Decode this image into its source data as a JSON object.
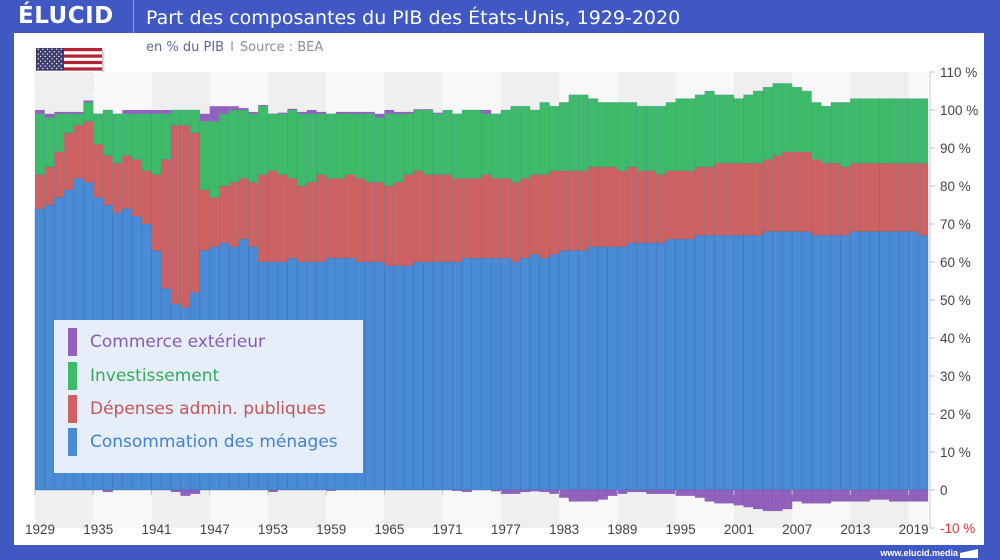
{
  "header": {
    "logo": "ÉLUCID",
    "title": "Part des composantes du PIB des États-Unis, 1929-2020"
  },
  "subtitle": {
    "unit": "en % du PIB",
    "separator": "I",
    "source": "Source : BEA"
  },
  "flag": {
    "icon": "us-flag-icon"
  },
  "footer": {
    "url": "www.elucid.media"
  },
  "colors": {
    "header_bg": "#3f58c4",
    "consumption": "#4a8bd6",
    "government": "#cd6262",
    "investment": "#3dbb68",
    "trade": "#9261be",
    "negative_label": "#e53030"
  },
  "chart_data": {
    "type": "bar",
    "stacked": true,
    "title": "Part des composantes du PIB des États-Unis, 1929-2020",
    "subtitle": "en % du PIB | Source : BEA",
    "xlabel": "",
    "ylabel": "",
    "ylim": [
      -10,
      110
    ],
    "x_start": 1929,
    "x_end": 2020,
    "x_ticks": [
      "1929",
      "1935",
      "1941",
      "1947",
      "1953",
      "1959",
      "1965",
      "1971",
      "1977",
      "1983",
      "1989",
      "1995",
      "2001",
      "2007",
      "2013",
      "2019"
    ],
    "y_ticks": [
      "110 %",
      "100 %",
      "90 %",
      "80 %",
      "70 %",
      "60 %",
      "50 %",
      "40 %",
      "30 %",
      "20 %",
      "10 %",
      "0",
      "-10 %"
    ],
    "y_tick_values": [
      110,
      100,
      90,
      80,
      70,
      60,
      50,
      40,
      30,
      20,
      10,
      0,
      -10
    ],
    "legend_position": "bottom-left",
    "legend": [
      {
        "key": "trade",
        "label": "Commerce extérieur"
      },
      {
        "key": "investment",
        "label": "Investissement"
      },
      {
        "key": "government",
        "label": "Dépenses admin. publiques"
      },
      {
        "key": "consumption",
        "label": "Consommation des ménages"
      }
    ],
    "series": [
      {
        "name": "Consommation des ménages",
        "key": "consumption",
        "values": [
          74,
          75,
          77,
          79,
          82,
          81,
          77,
          75,
          73,
          74,
          72,
          70,
          63,
          53,
          49,
          48,
          52,
          63,
          64,
          65,
          64,
          66,
          64,
          60,
          60,
          60,
          61,
          60,
          60,
          60,
          61,
          61,
          61,
          60,
          60,
          60,
          59,
          59,
          59,
          60,
          60,
          60,
          60,
          60,
          61,
          61,
          61,
          61,
          61,
          60,
          61,
          62,
          61,
          62,
          63,
          63,
          63,
          64,
          64,
          64,
          64,
          65,
          65,
          65,
          65,
          66,
          66,
          66,
          67,
          67,
          67,
          67,
          67,
          67,
          67,
          68,
          68,
          68,
          68,
          68,
          67,
          67,
          67,
          67,
          68,
          68,
          68,
          68,
          68,
          68,
          68,
          67
        ]
      },
      {
        "name": "Dépenses admin. publiques",
        "key": "government",
        "values": [
          9,
          10,
          12,
          15,
          14,
          16,
          14,
          13,
          13,
          14,
          15,
          14,
          20,
          34,
          47,
          48,
          42,
          16,
          13,
          15,
          17,
          16,
          17,
          23,
          24,
          23,
          21,
          20,
          21,
          23,
          21,
          21,
          22,
          22,
          21,
          21,
          21,
          22,
          24,
          24,
          23,
          23,
          23,
          22,
          21,
          21,
          22,
          21,
          21,
          21,
          21,
          21,
          22,
          22,
          21,
          21,
          21,
          21,
          21,
          21,
          20,
          20,
          19,
          19,
          18,
          18,
          18,
          18,
          18,
          18,
          19,
          19,
          19,
          19,
          19,
          19,
          20,
          21,
          21,
          21,
          20,
          19,
          19,
          18,
          18,
          18,
          18,
          18,
          18,
          18,
          18,
          19
        ]
      },
      {
        "name": "Investissement",
        "key": "investment",
        "values": [
          16,
          13,
          10,
          5,
          3,
          5,
          8,
          12,
          13,
          11,
          12,
          15,
          16,
          12,
          4,
          4,
          6,
          18,
          20,
          19,
          19,
          18,
          18,
          18,
          15,
          16,
          18,
          19,
          18,
          16,
          17,
          17,
          16,
          17,
          18,
          17,
          19,
          18,
          16,
          16,
          17,
          16,
          17,
          17,
          18,
          18,
          16,
          17,
          18,
          20,
          19,
          17,
          19,
          17,
          18,
          20,
          20,
          18,
          17,
          17,
          18,
          17,
          17,
          17,
          18,
          18,
          19,
          19,
          19,
          20,
          18,
          18,
          17,
          18,
          19,
          19,
          19,
          18,
          17,
          16,
          15,
          15,
          16,
          17,
          17,
          17,
          17,
          17,
          17,
          17,
          17,
          17
        ]
      },
      {
        "name": "Commerce extérieur",
        "key": "trade",
        "values": [
          1,
          1,
          0.5,
          0.5,
          0.5,
          0.5,
          0,
          -0.5,
          0,
          1,
          1,
          1,
          1,
          1,
          -0.5,
          -1.5,
          -1,
          2,
          4,
          2,
          1,
          0.5,
          0.5,
          0.3,
          -0.5,
          0.3,
          0.3,
          0.5,
          1,
          0.5,
          -0.2,
          0.5,
          0.5,
          0.5,
          0.5,
          1,
          1,
          0.5,
          0.5,
          0.2,
          0.2,
          0.3,
          0,
          -0.2,
          -0.5,
          0,
          1,
          -0.3,
          -1,
          -1,
          -0.5,
          -0.3,
          -0.5,
          -1,
          -2,
          -3,
          -3,
          -3,
          -2.5,
          -1.5,
          -1,
          -0.5,
          -0.5,
          -1,
          -1,
          -1,
          -1.5,
          -1.5,
          -2,
          -3,
          -3.5,
          -3.5,
          -4,
          -4.5,
          -5,
          -5.5,
          -5.5,
          -5,
          -3,
          -3.5,
          -3.5,
          -3.5,
          -3,
          -3,
          -3,
          -3,
          -2.5,
          -2.5,
          -3,
          -3,
          -3,
          -3
        ]
      }
    ]
  }
}
